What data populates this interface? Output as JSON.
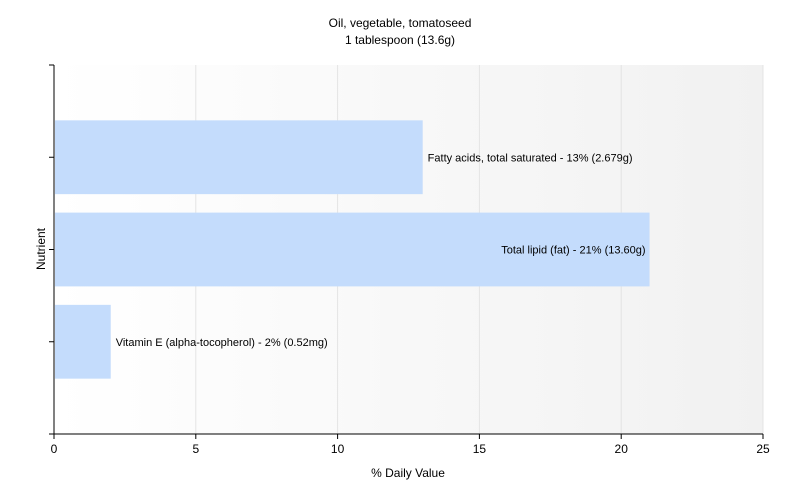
{
  "chart_data": {
    "type": "bar",
    "orientation": "horizontal",
    "title": "Oil, vegetable, tomatoseed",
    "subtitle": "1 tablespoon (13.6g)",
    "xlabel": "% Daily Value",
    "ylabel": "Nutrient",
    "xlim": [
      0,
      25
    ],
    "xticks": [
      0,
      5,
      10,
      15,
      20,
      25
    ],
    "grid": true,
    "legend": "none",
    "bar_color": "#c4dcfc",
    "categories": [
      "Vitamin E (alpha-tocopherol)",
      "Total lipid (fat)",
      "Fatty acids, total saturated"
    ],
    "values": [
      2,
      21,
      13
    ],
    "data_labels": [
      "Vitamin E (alpha-tocopherol) - 2% (0.52mg)",
      "Total lipid (fat) - 21% (13.60g)",
      "Fatty acids, total saturated - 13% (2.679g)"
    ]
  }
}
